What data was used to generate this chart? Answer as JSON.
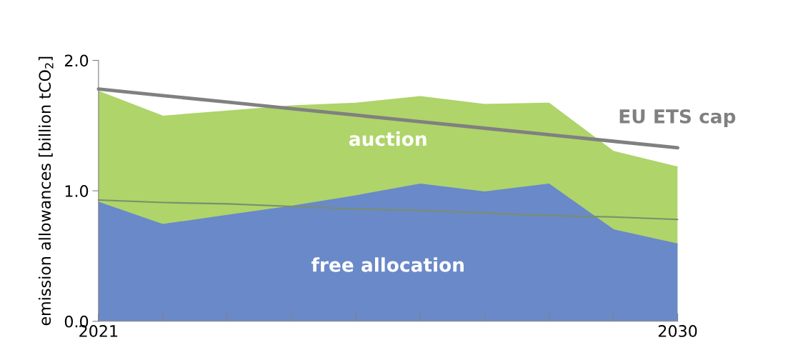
{
  "chart_data": {
    "type": "area",
    "ylabel": "emission allowances [billion tCO$_{2}$]",
    "x": [
      2021,
      2022,
      2023,
      2024,
      2025,
      2026,
      2027,
      2028,
      2029,
      2030
    ],
    "xlim": [
      2021,
      2030
    ],
    "xticks": [
      2021,
      {
        "value": 2022,
        "label": null
      },
      {
        "value": 2023,
        "label": null
      },
      {
        "value": 2024,
        "label": null
      },
      {
        "value": 2025,
        "label": null
      },
      {
        "value": 2026,
        "label": null
      },
      {
        "value": 2027,
        "label": null
      },
      {
        "value": 2028,
        "label": null
      },
      {
        "value": 2029,
        "label": null
      },
      2030
    ],
    "ylim": [
      0,
      2.0
    ],
    "yticks": [
      {
        "value": 0,
        "label": "0.0"
      },
      {
        "value": 1.0,
        "label": "1.0"
      },
      {
        "value": 2.0,
        "label": "2.0"
      }
    ],
    "grid": false,
    "legend": false,
    "series": [
      {
        "name": "auction",
        "color": "#afd46a",
        "values": [
          1.76,
          1.57,
          1.61,
          1.65,
          1.67,
          1.72,
          1.66,
          1.67,
          1.3,
          1.18
        ]
      },
      {
        "name": "free allocation",
        "color": "#6a89c9",
        "values": [
          0.91,
          0.74,
          0.81,
          0.88,
          0.96,
          1.05,
          0.99,
          1.05,
          0.7,
          0.59
        ]
      },
      {
        "type": "line",
        "color": "#7a8f6a",
        "values": [
          0.93,
          0.91,
          0.9,
          0.88,
          0.86,
          0.85,
          0.83,
          0.81,
          0.8,
          0.78
        ]
      },
      {
        "name": "EU ETS cap",
        "type": "line",
        "color": "#808080",
        "values": [
          1.78,
          1.73,
          1.68,
          1.63,
          1.58,
          1.53,
          1.48,
          1.43,
          1.38,
          1.33
        ]
      }
    ]
  }
}
